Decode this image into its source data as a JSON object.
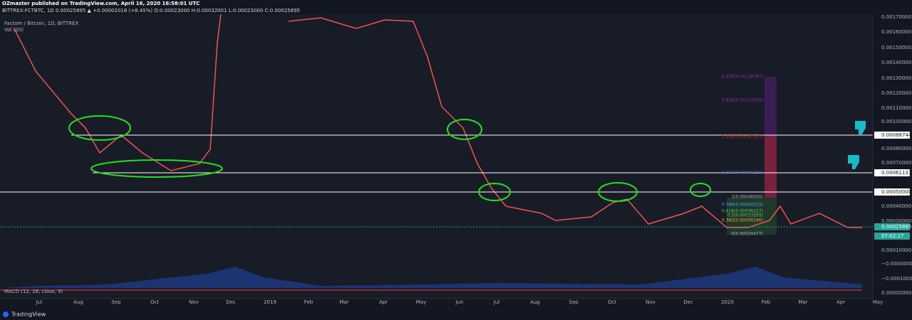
{
  "header": {
    "publisher": "OZmaster published on TradingView.com, April 16, 2020 16:58:01 UTC",
    "symbol_line": "BITTREX:FCTBTC, 1D 0.00025895 ▲ +0.00002018 (+8.45%) O:0.00023000 H:0.00032001 L:0.00023000 C:0.00025895"
  },
  "legend": {
    "title": "Factom / Bitcoin, 1D, BITTREX",
    "volume": "Vol (20)",
    "macd": "MACD (12, 26, close, 9)"
  },
  "price_axis": [
    "0.00170000",
    "0.00160000",
    "0.00150000",
    "0.00140000",
    "0.00130000",
    "0.00120000",
    "0.00110000",
    "0.00100000",
    "0.00088744",
    "0.00080000",
    "0.00070000",
    "0.00061131",
    "0.00050000",
    "0.00040000",
    "0.00030000",
    "0.00025895",
    "07:02:17",
    "0.00010000",
    "−0.00000000",
    "−0.00010000",
    "0.00000000"
  ],
  "time_axis": [
    "Jul",
    "Aug",
    "Sep",
    "Oct",
    "Nov",
    "Dec",
    "2019",
    "Feb",
    "Mar",
    "Apr",
    "May",
    "Jun",
    "Jul",
    "Aug",
    "Sep",
    "Oct",
    "Nov",
    "Dec",
    "2020",
    "Feb",
    "Mar",
    "Apr",
    "May"
  ],
  "fib_levels": [
    "4.236(0.00128787)",
    "3.618(0.00112916)",
    "2.618(0.00087393)",
    "1.618(0.00061131)",
    "1(0.00046000)",
    "0.786(0.00040525)",
    "0.618(0.00036227)",
    "0.5(0.00033209)",
    "0.382(0.00030190)",
    "0(0.00020477)"
  ],
  "footer": {
    "brand": "TradingView"
  }
}
